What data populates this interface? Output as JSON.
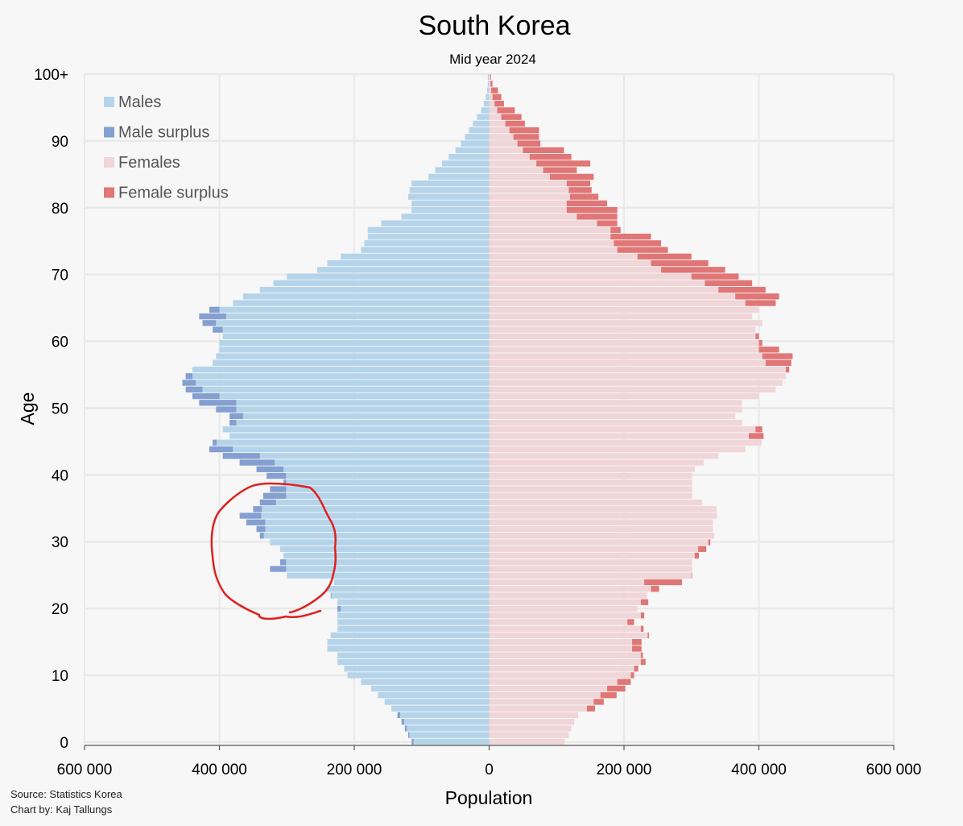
{
  "chart_data": {
    "type": "bar",
    "subtype": "population-pyramid",
    "title": "South Korea",
    "subtitle": "Mid year 2024",
    "xlabel": "Population",
    "ylabel": "Age",
    "xlim": [
      -600000,
      600000
    ],
    "ylim": [
      0,
      100
    ],
    "x_tick_values": [
      -600000,
      -400000,
      -200000,
      0,
      200000,
      400000,
      600000
    ],
    "x_tick_labels": [
      "600 000",
      "400 000",
      "200 000",
      "0",
      "200 000",
      "400 000",
      "600 000"
    ],
    "y_tick_values": [
      0,
      10,
      20,
      30,
      40,
      50,
      60,
      70,
      80,
      90,
      100
    ],
    "y_tick_labels": [
      "0",
      "10",
      "20",
      "30",
      "40",
      "50",
      "60",
      "70",
      "80",
      "90",
      "100+"
    ],
    "grid": true,
    "legend_position": "top-left",
    "legend": [
      {
        "label": "Males",
        "color": "#b5d4ea"
      },
      {
        "label": "Male surplus",
        "color": "#849fd0"
      },
      {
        "label": "Females",
        "color": "#f0d6d8"
      },
      {
        "label": "Female surplus",
        "color": "#e07676"
      }
    ],
    "ages": [
      0,
      1,
      2,
      3,
      4,
      5,
      6,
      7,
      8,
      9,
      10,
      11,
      12,
      13,
      14,
      15,
      16,
      17,
      18,
      19,
      20,
      21,
      22,
      23,
      24,
      25,
      26,
      27,
      28,
      29,
      30,
      31,
      32,
      33,
      34,
      35,
      36,
      37,
      38,
      39,
      40,
      41,
      42,
      43,
      44,
      45,
      46,
      47,
      48,
      49,
      50,
      51,
      52,
      53,
      54,
      55,
      56,
      57,
      58,
      59,
      60,
      61,
      62,
      63,
      64,
      65,
      66,
      67,
      68,
      69,
      70,
      71,
      72,
      73,
      74,
      75,
      76,
      77,
      78,
      79,
      80,
      81,
      82,
      83,
      84,
      85,
      86,
      87,
      88,
      89,
      90,
      91,
      92,
      93,
      94,
      95,
      96,
      97,
      98,
      99,
      100
    ],
    "series": [
      {
        "name": "Males",
        "values": [
          115000,
          120000,
          125000,
          130000,
          136000,
          145000,
          155000,
          165000,
          175000,
          190000,
          210000,
          215000,
          225000,
          225000,
          240000,
          240000,
          235000,
          225000,
          225000,
          225000,
          225000,
          225000,
          235000,
          240000,
          230000,
          300000,
          325000,
          310000,
          305000,
          310000,
          325000,
          340000,
          345000,
          360000,
          370000,
          350000,
          340000,
          335000,
          325000,
          305000,
          330000,
          345000,
          370000,
          395000,
          415000,
          410000,
          385000,
          395000,
          385000,
          385000,
          405000,
          430000,
          440000,
          450000,
          455000,
          450000,
          440000,
          410000,
          405000,
          400000,
          400000,
          395000,
          410000,
          425000,
          430000,
          415000,
          380000,
          365000,
          340000,
          320000,
          300000,
          255000,
          240000,
          220000,
          190000,
          185000,
          180000,
          180000,
          160000,
          130000,
          115000,
          115000,
          120000,
          118000,
          115000,
          90000,
          80000,
          70000,
          60000,
          50000,
          42000,
          36000,
          30000,
          24000,
          18000,
          12000,
          8000,
          5000,
          3000,
          2000,
          2000
        ]
      },
      {
        "name": "Females",
        "values": [
          112000,
          118000,
          122000,
          126000,
          132000,
          157000,
          170000,
          189000,
          202000,
          210000,
          215000,
          221000,
          232000,
          228000,
          226000,
          226000,
          237000,
          229000,
          215000,
          230000,
          220000,
          236000,
          234000,
          252000,
          286000,
          301000,
          301000,
          301000,
          311000,
          322000,
          328000,
          334000,
          332000,
          332000,
          338000,
          337000,
          316000,
          301000,
          301000,
          301000,
          301000,
          305000,
          318000,
          340000,
          380000,
          404000,
          407000,
          405000,
          375000,
          365000,
          375000,
          375000,
          400000,
          425000,
          435000,
          440000,
          445000,
          448000,
          450000,
          430000,
          405000,
          400000,
          395000,
          405000,
          390000,
          400000,
          425000,
          430000,
          410000,
          390000,
          370000,
          350000,
          325000,
          300000,
          265000,
          255000,
          240000,
          195000,
          190000,
          190000,
          190000,
          175000,
          162000,
          152000,
          150000,
          155000,
          130000,
          150000,
          122000,
          111000,
          76000,
          74000,
          74000,
          53000,
          48000,
          38000,
          22000,
          18000,
          13000,
          5000,
          3000
        ]
      },
      {
        "name": "Male surplus",
        "values": [
          3000,
          2000,
          3000,
          4000,
          4000,
          -12000,
          -15000,
          -24000,
          -27000,
          -20000,
          -5000,
          -6000,
          -7000,
          -3000,
          -14000,
          -14000,
          -2000,
          -4000,
          -10000,
          -5000,
          5000,
          -11000,
          1000,
          -12000,
          -56000,
          -1000,
          24000,
          9000,
          -6000,
          -12000,
          -3000,
          6000,
          13000,
          28000,
          32000,
          13000,
          24000,
          34000,
          24000,
          4000,
          29000,
          40000,
          52000,
          55000,
          35000,
          6000,
          -22000,
          -10000,
          10000,
          20000,
          30000,
          55000,
          40000,
          25000,
          20000,
          10000,
          -5000,
          -38000,
          -45000,
          -30000,
          -5000,
          -5000,
          15000,
          20000,
          40000,
          15000,
          -45000,
          -65000,
          -70000,
          -70000,
          -70000,
          -95000,
          -85000,
          -80000,
          -75000,
          -70000,
          -60000,
          -15000,
          -30000,
          -60000,
          -75000,
          -60000,
          -42000,
          -34000,
          -35000,
          -65000,
          -50000,
          -80000,
          -62000,
          -61000,
          -34000,
          -38000,
          -44000,
          -29000,
          -30000,
          -26000,
          -14000,
          -13000,
          -10000,
          -3000,
          -1000
        ]
      }
    ],
    "annotation": "red freehand circle around male surplus at ages 20-38",
    "source": "Source: Statistics Korea",
    "author": "Chart by: Kaj Tallungs"
  }
}
